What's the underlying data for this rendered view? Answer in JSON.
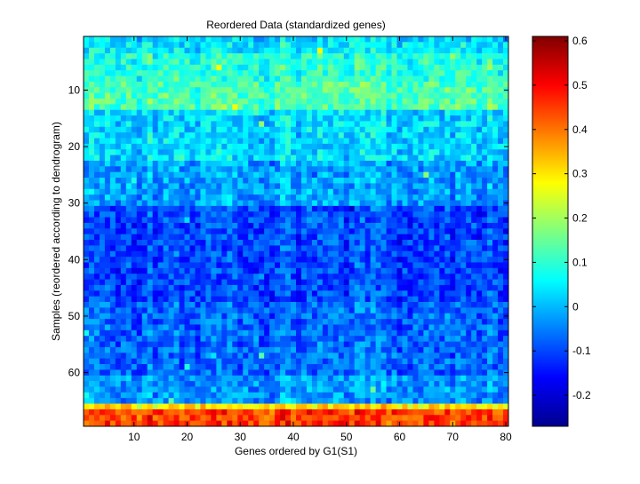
{
  "chart_data": {
    "type": "heatmap",
    "title": "Reordered Data (standardized genes)",
    "xlabel": "Genes ordered by G1(S1)",
    "ylabel": "Samples (reordered according to dendrogram)",
    "n_cols": 80,
    "n_rows": 69,
    "xlim": [
      0.5,
      80.5
    ],
    "ylim": [
      0.5,
      69.5
    ],
    "x_ticks": [
      10,
      20,
      30,
      40,
      50,
      60,
      70,
      80
    ],
    "y_ticks": [
      10,
      20,
      30,
      40,
      50,
      60
    ],
    "colormap": "jet",
    "clim": [
      -0.27,
      0.61
    ],
    "colorbar_ticks": [
      -0.2,
      -0.1,
      0,
      0.1,
      0.2,
      0.3,
      0.4,
      0.5,
      0.6
    ],
    "grid": false,
    "row_band_means": [
      {
        "rows": [
          1,
          1
        ],
        "mean": 0.02
      },
      {
        "rows": [
          2,
          3
        ],
        "mean": 0.05
      },
      {
        "rows": [
          4,
          8
        ],
        "mean": 0.09
      },
      {
        "rows": [
          9,
          13
        ],
        "mean": 0.13
      },
      {
        "rows": [
          14,
          22
        ],
        "mean": 0.03
      },
      {
        "rows": [
          23,
          30
        ],
        "mean": -0.02
      },
      {
        "rows": [
          31,
          47
        ],
        "mean": -0.1
      },
      {
        "rows": [
          48,
          60
        ],
        "mean": -0.07
      },
      {
        "rows": [
          61,
          65
        ],
        "mean": -0.03
      },
      {
        "rows": [
          66,
          66
        ],
        "mean": 0.3
      },
      {
        "rows": [
          67,
          69
        ],
        "mean": 0.45
      }
    ]
  }
}
